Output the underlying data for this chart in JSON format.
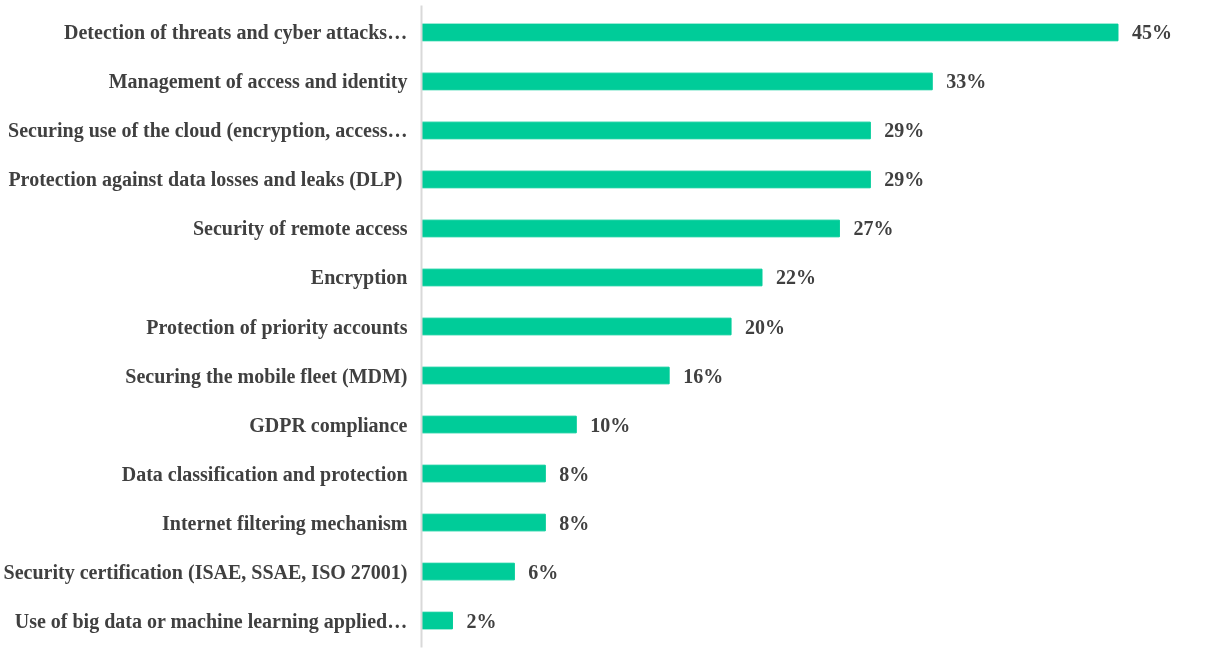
{
  "chart_data": {
    "type": "bar",
    "orientation": "horizontal",
    "color": "#00cc99",
    "categories": [
      "Detection of threats and cyber attacks…",
      "Management of access and identity",
      "Securing use of the cloud (encryption, access…",
      "Protection against data losses and leaks  (DLP)",
      "Security of remote access",
      "Encryption",
      "Protection of priority accounts",
      "Securing the mobile fleet (MDM)",
      "GDPR compliance",
      "Data classification and protection",
      "Internet filtering mechanism",
      "Security certification (ISAE, SSAE, ISO 27001)",
      "Use of big data or machine learning applied…"
    ],
    "values": [
      45,
      33,
      29,
      29,
      27,
      22,
      20,
      16,
      10,
      8,
      8,
      6,
      2
    ],
    "value_labels": [
      "45%",
      "33%",
      "29%",
      "29%",
      "27%",
      "22%",
      "20%",
      "16%",
      "10%",
      "8%",
      "8%",
      "6%",
      "2%"
    ]
  }
}
